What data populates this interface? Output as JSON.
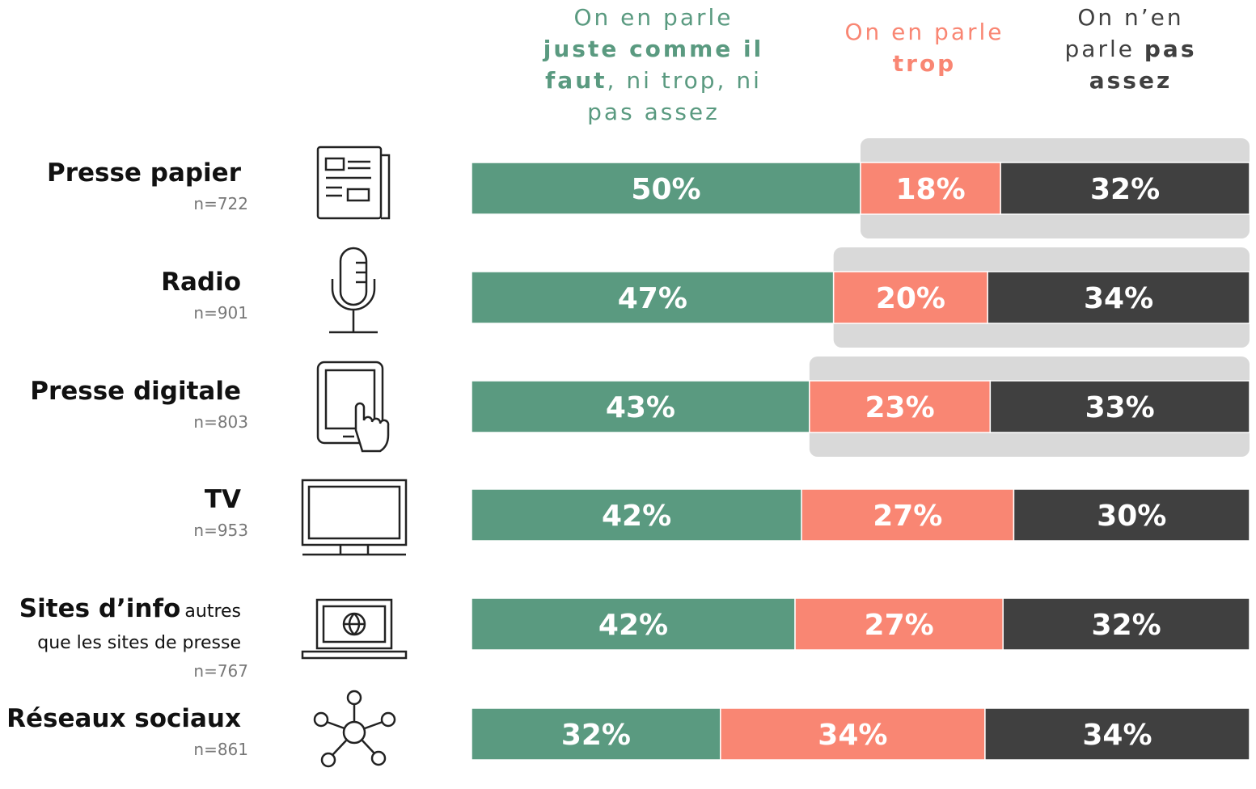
{
  "chart_data": {
    "type": "stacked-bar-100",
    "categories": [
      "Presse papier",
      "Radio",
      "Presse digitale",
      "TV",
      "Sites d’info",
      "Réseaux sociaux"
    ],
    "category_notes": [
      null,
      null,
      null,
      null,
      "autres que les sites de presse",
      null
    ],
    "sample_sizes": [
      "n=722",
      "n=901",
      "n=803",
      "n=953",
      "n=767",
      "n=861"
    ],
    "highlighted": [
      true,
      true,
      true,
      false,
      false,
      false
    ],
    "series": [
      {
        "name": "On en parle juste comme il faut, ni trop, ni pas assez",
        "emphasis": "juste comme il faut",
        "color": "#5a9a80",
        "values": [
          50,
          47,
          43,
          42,
          42,
          32
        ],
        "value_labels": [
          "50%",
          "47%",
          "43%",
          "42%",
          "42%",
          "32%"
        ]
      },
      {
        "name": "On en parle trop",
        "emphasis": "trop",
        "color": "#f98673",
        "values": [
          18,
          20,
          23,
          27,
          27,
          34
        ],
        "value_labels": [
          "18%",
          "20%",
          "23%",
          "27%",
          "27%",
          "34%"
        ]
      },
      {
        "name": "On n’en parle pas assez",
        "emphasis": "pas assez",
        "color": "#404040",
        "values": [
          32,
          34,
          33,
          30,
          32,
          34
        ],
        "value_labels": [
          "32%",
          "34%",
          "33%",
          "30%",
          "32%",
          "34%"
        ]
      }
    ]
  }
}
